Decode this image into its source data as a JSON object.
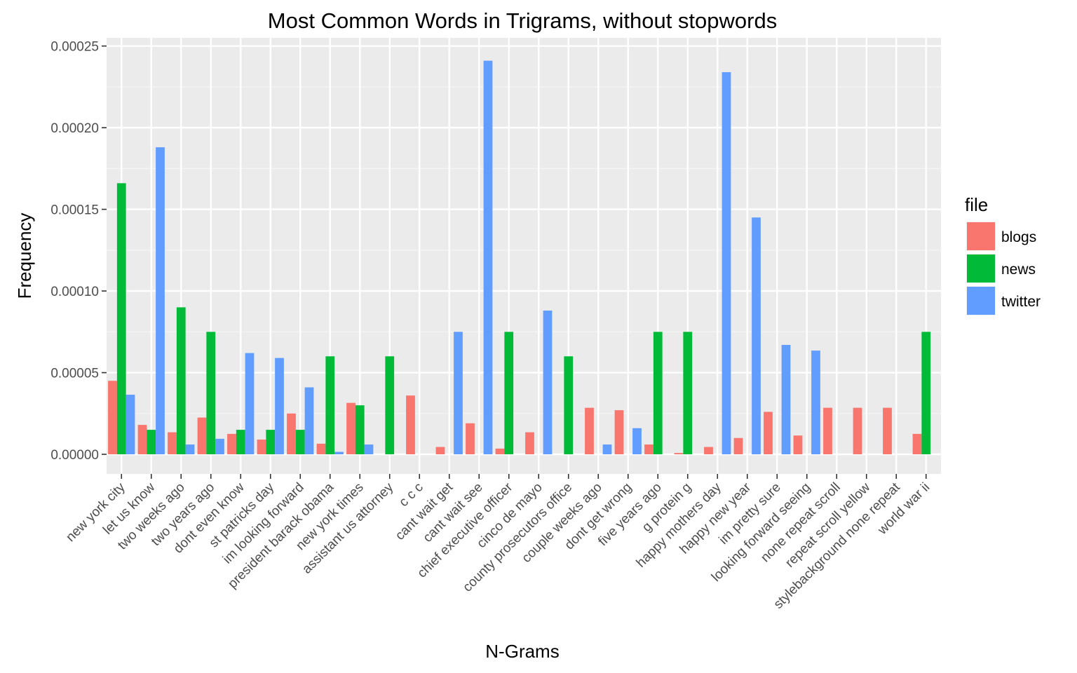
{
  "chart_data": {
    "type": "bar",
    "title": "Most Common Words in Trigrams, without stopwords",
    "xlabel": "N-Grams",
    "ylabel": "Frequency",
    "ylim": [
      -1.2e-05,
      0.000255
    ],
    "yticks": [
      0,
      5e-05,
      0.0001,
      0.00015,
      0.0002,
      0.00025
    ],
    "ytick_labels": [
      "0.00000",
      "0.00005",
      "0.00010",
      "0.00015",
      "0.00020",
      "0.00025"
    ],
    "grid": true,
    "legend": {
      "title": "file",
      "placement": "right"
    },
    "categories": [
      "new york city",
      "let us know",
      "two weeks ago",
      "two years ago",
      "dont even know",
      "st patricks day",
      "im looking forward",
      "president barack obama",
      "new york times",
      "assistant us attorney",
      "c c c",
      "cant wait get",
      "cant wait see",
      "chief executive officer",
      "cinco de mayo",
      "county prosecutors office",
      "couple weeks ago",
      "dont get wrong",
      "five years ago",
      "g protein g",
      "happy mothers day",
      "happy new year",
      "im pretty sure",
      "looking forward seeing",
      "none repeat scroll",
      "repeat scroll yellow",
      "stylebackground none repeat",
      "world war ii"
    ],
    "series": [
      {
        "name": "blogs",
        "color": "#F8766D",
        "values": [
          4.5e-05,
          1.8e-05,
          1.35e-05,
          2.25e-05,
          1.25e-05,
          9e-06,
          2.5e-05,
          6.5e-06,
          3.15e-05,
          0,
          3.6e-05,
          4.5e-06,
          1.9e-05,
          3.5e-06,
          1.35e-05,
          0,
          2.85e-05,
          2.7e-05,
          6e-06,
          8e-07,
          4.5e-06,
          1e-05,
          2.6e-05,
          1.15e-05,
          2.85e-05,
          2.85e-05,
          2.85e-05,
          1.25e-05
        ]
      },
      {
        "name": "news",
        "color": "#00BA38",
        "values": [
          0.000166,
          1.5e-05,
          9e-05,
          7.5e-05,
          1.5e-05,
          1.5e-05,
          1.5e-05,
          6e-05,
          3e-05,
          6e-05,
          0,
          0,
          0,
          7.5e-05,
          0,
          6e-05,
          0,
          0,
          7.5e-05,
          7.5e-05,
          0,
          0,
          0,
          0,
          0,
          0,
          0,
          7.5e-05
        ]
      },
      {
        "name": "twitter",
        "color": "#619CFF",
        "values": [
          3.65e-05,
          0.000188,
          6e-06,
          9.5e-06,
          6.2e-05,
          5.9e-05,
          4.1e-05,
          1.5e-06,
          6e-06,
          0,
          0,
          7.5e-05,
          0.000241,
          0,
          8.8e-05,
          0,
          6e-06,
          1.6e-05,
          0,
          0,
          0.000234,
          0.000145,
          6.7e-05,
          6.35e-05,
          0,
          0,
          0,
          0
        ]
      }
    ]
  }
}
